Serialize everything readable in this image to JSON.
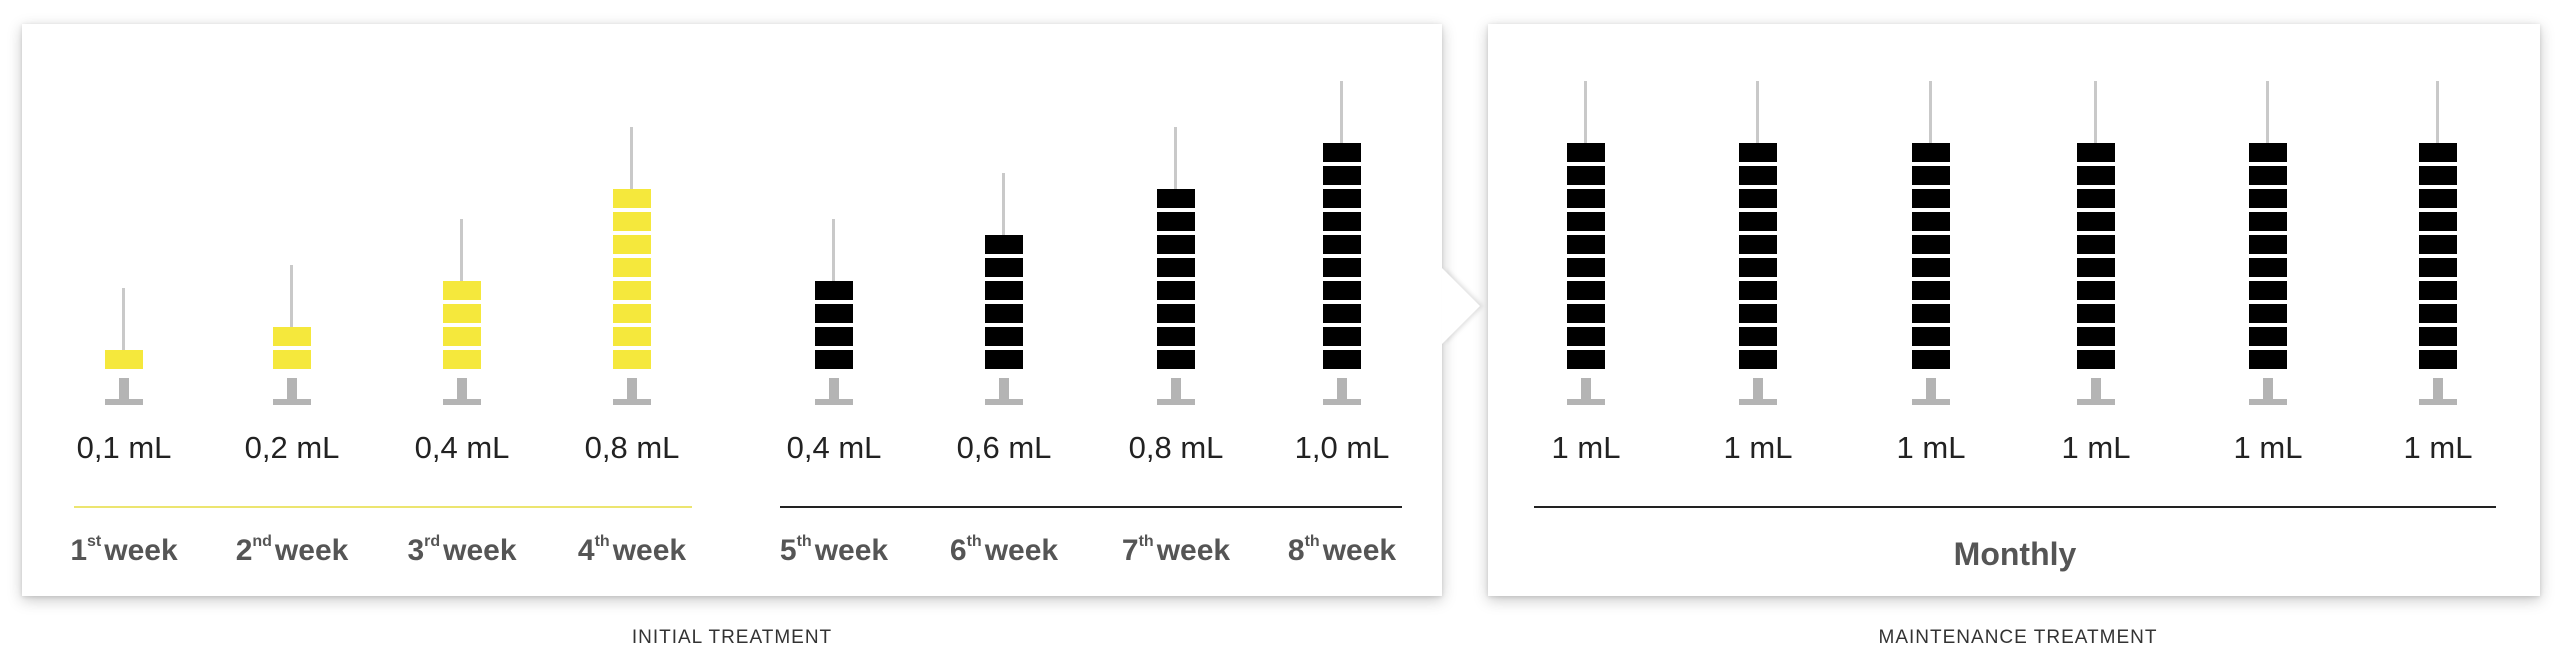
{
  "colors": {
    "initial_fill": "#f5e83c",
    "maintenance_fill": "#000000",
    "plunger": "#b4b4b4",
    "initial_rule": "#ece570",
    "rule": "#222222"
  },
  "initial": {
    "fill_color": "#f5e83c",
    "doses": [
      {
        "dose": "0,1 mL",
        "units": 1,
        "week_num": "1",
        "week_sup": "st",
        "week_word": "week"
      },
      {
        "dose": "0,2 mL",
        "units": 2,
        "week_num": "2",
        "week_sup": "nd",
        "week_word": "week"
      },
      {
        "dose": "0,4 mL",
        "units": 4,
        "week_num": "3",
        "week_sup": "rd",
        "week_word": "week"
      },
      {
        "dose": "0,8 mL",
        "units": 8,
        "week_num": "4",
        "week_sup": "th",
        "week_word": "week"
      }
    ]
  },
  "escalation": {
    "fill_color": "#000000",
    "doses": [
      {
        "dose": "0,4 mL",
        "units": 4,
        "week_num": "5",
        "week_sup": "th",
        "week_word": "week"
      },
      {
        "dose": "0,6 mL",
        "units": 6,
        "week_num": "6",
        "week_sup": "th",
        "week_word": "week"
      },
      {
        "dose": "0,8 mL",
        "units": 8,
        "week_num": "7",
        "week_sup": "th",
        "week_word": "week"
      },
      {
        "dose": "1,0 mL",
        "units": 10,
        "week_num": "8",
        "week_sup": "th",
        "week_word": "week"
      }
    ]
  },
  "maintenance": {
    "fill_color": "#000000",
    "doses": [
      {
        "dose": "1 mL",
        "units": 10
      },
      {
        "dose": "1 mL",
        "units": 10
      },
      {
        "dose": "1 mL",
        "units": 10
      },
      {
        "dose": "1 mL",
        "units": 10
      },
      {
        "dose": "1 mL",
        "units": 10
      },
      {
        "dose": "1 mL",
        "units": 10
      }
    ],
    "period_label": "Monthly"
  },
  "captions": {
    "initial": "INITIAL TREATMENT",
    "maintenance": "MAINTENANCE TREATMENT"
  }
}
